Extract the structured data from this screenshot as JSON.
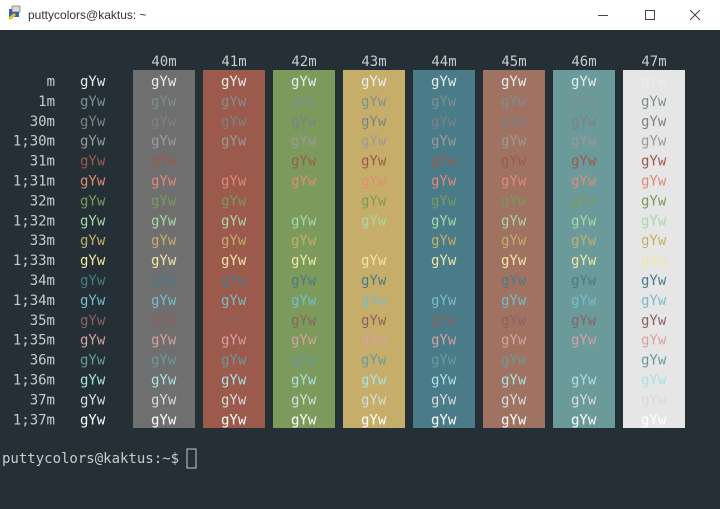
{
  "window": {
    "title": "puttycolors@kaktus: ~"
  },
  "terminal": {
    "sample": "gYw",
    "default_fg": "#c5cccc",
    "columns": [
      {
        "label": "40m",
        "bg": "#6f6f6f"
      },
      {
        "label": "41m",
        "bg": "#9b5a4b"
      },
      {
        "label": "42m",
        "bg": "#7b9a5b"
      },
      {
        "label": "43m",
        "bg": "#c6ae6a"
      },
      {
        "label": "44m",
        "bg": "#4a7b88"
      },
      {
        "label": "45m",
        "bg": "#a07262"
      },
      {
        "label": "46m",
        "bg": "#6b9a9a"
      },
      {
        "label": "47m",
        "bg": "#e6e6e6"
      }
    ],
    "rows": [
      {
        "label": "m",
        "fg": "#e8eeee"
      },
      {
        "label": "1m",
        "fg": "#7f8f90"
      },
      {
        "label": "30m",
        "fg": "#7b8384"
      },
      {
        "label": "1;30m",
        "fg": "#9a9a9a"
      },
      {
        "label": "31m",
        "fg": "#9b5a4b"
      },
      {
        "label": "1;31m",
        "fg": "#e08a78"
      },
      {
        "label": "32m",
        "fg": "#7b9a5b"
      },
      {
        "label": "1;32m",
        "fg": "#a8d8a8"
      },
      {
        "label": "33m",
        "fg": "#c6ae6a"
      },
      {
        "label": "1;33m",
        "fg": "#f2e6a6"
      },
      {
        "label": "34m",
        "fg": "#4a7b88"
      },
      {
        "label": "1;34m",
        "fg": "#78bccc"
      },
      {
        "label": "35m",
        "fg": "#8c6262"
      },
      {
        "label": "1;35m",
        "fg": "#d8a0a0"
      },
      {
        "label": "36m",
        "fg": "#6b9a9a"
      },
      {
        "label": "1;36m",
        "fg": "#a8e2e2"
      },
      {
        "label": "37m",
        "fg": "#d8dcdc"
      },
      {
        "label": "1;37m",
        "fg": "#ffffff"
      }
    ],
    "prompt": "puttycolors@kaktus:~$"
  }
}
